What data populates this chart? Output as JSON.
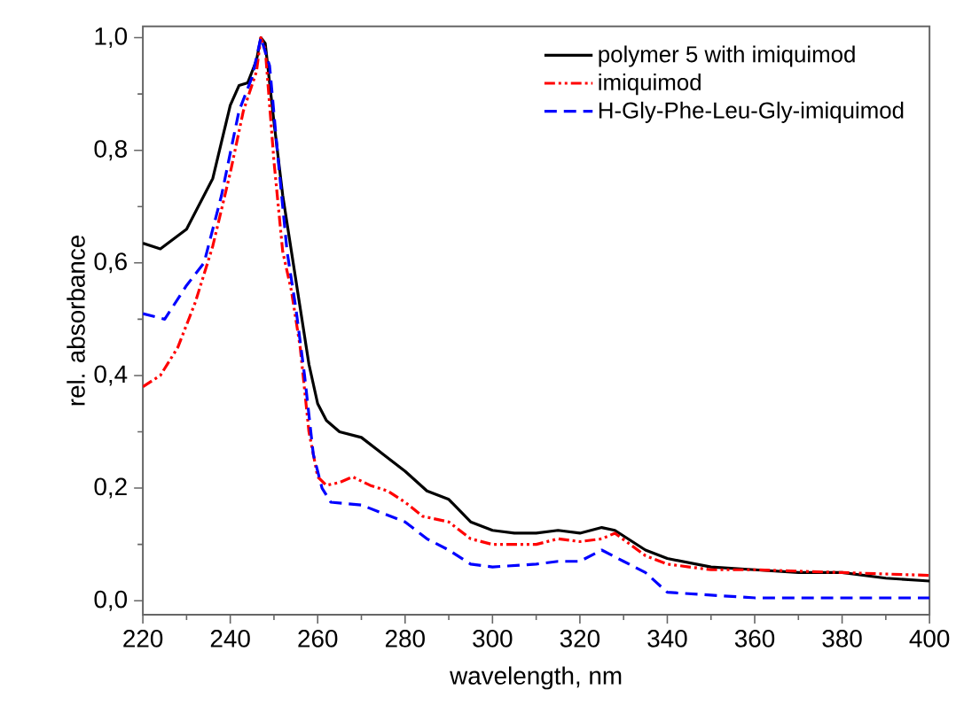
{
  "chart_data": {
    "type": "line",
    "xlabel": "wavelength, nm",
    "ylabel": "rel. absorbance",
    "xlim": [
      220,
      400
    ],
    "ylim": [
      -0.025,
      1.02
    ],
    "xticks": [
      220,
      240,
      260,
      280,
      300,
      320,
      340,
      360,
      380,
      400
    ],
    "yticks": [
      {
        "value": 0,
        "label": "0,0"
      },
      {
        "value": 0.2,
        "label": "0,2"
      },
      {
        "value": 0.4,
        "label": "0,4"
      },
      {
        "value": 0.6,
        "label": "0,6"
      },
      {
        "value": 0.8,
        "label": "0,8"
      },
      {
        "value": 1.0,
        "label": "1,0"
      }
    ],
    "grid": false,
    "legend": "top right",
    "marker": "none",
    "series": [
      {
        "name": "polymer 5 with imiquimod",
        "color": "#000000",
        "line_style": "solid",
        "x": [
          220,
          224,
          230,
          236,
          240,
          242,
          244,
          246,
          247,
          248,
          250,
          252,
          254,
          256,
          258,
          260,
          262,
          265,
          270,
          275,
          280,
          285,
          290,
          295,
          300,
          305,
          310,
          315,
          320,
          325,
          328,
          335,
          340,
          350,
          360,
          370,
          380,
          390,
          400
        ],
        "values": [
          0.635,
          0.625,
          0.66,
          0.75,
          0.88,
          0.915,
          0.92,
          0.96,
          1.0,
          0.99,
          0.85,
          0.72,
          0.62,
          0.52,
          0.42,
          0.35,
          0.32,
          0.3,
          0.29,
          0.26,
          0.23,
          0.195,
          0.18,
          0.14,
          0.125,
          0.12,
          0.12,
          0.125,
          0.12,
          0.13,
          0.125,
          0.09,
          0.075,
          0.06,
          0.055,
          0.05,
          0.05,
          0.04,
          0.035
        ]
      },
      {
        "name": "imiquimod",
        "color": "#ff0000",
        "line_style": "dashdotdotted",
        "x": [
          220,
          224,
          228,
          232,
          236,
          240,
          243,
          246,
          247,
          248,
          250,
          252,
          254,
          256,
          258,
          260,
          262,
          265,
          268,
          272,
          276,
          280,
          284,
          290,
          295,
          300,
          305,
          310,
          315,
          320,
          325,
          328,
          335,
          340,
          350,
          360,
          380,
          400
        ],
        "values": [
          0.38,
          0.4,
          0.45,
          0.53,
          0.63,
          0.76,
          0.87,
          0.94,
          1.0,
          0.98,
          0.78,
          0.62,
          0.55,
          0.45,
          0.3,
          0.22,
          0.205,
          0.21,
          0.22,
          0.205,
          0.195,
          0.175,
          0.15,
          0.14,
          0.11,
          0.1,
          0.1,
          0.1,
          0.11,
          0.105,
          0.11,
          0.12,
          0.08,
          0.065,
          0.055,
          0.055,
          0.05,
          0.045
        ]
      },
      {
        "name": "H-Gly-Phe-Leu-Gly-imiquimod",
        "color": "#0000ff",
        "line_style": "dashed",
        "x": [
          220,
          225,
          230,
          234,
          238,
          242,
          245,
          247,
          249,
          251,
          253,
          255,
          257,
          259,
          261,
          263,
          270,
          275,
          280,
          285,
          290,
          295,
          300,
          310,
          315,
          320,
          325,
          330,
          335,
          340,
          350,
          360,
          400
        ],
        "values": [
          0.51,
          0.5,
          0.56,
          0.6,
          0.72,
          0.87,
          0.93,
          1.0,
          0.95,
          0.78,
          0.62,
          0.52,
          0.4,
          0.26,
          0.2,
          0.175,
          0.17,
          0.155,
          0.14,
          0.11,
          0.09,
          0.065,
          0.06,
          0.065,
          0.07,
          0.07,
          0.09,
          0.07,
          0.05,
          0.015,
          0.01,
          0.005,
          0.005
        ]
      }
    ]
  }
}
